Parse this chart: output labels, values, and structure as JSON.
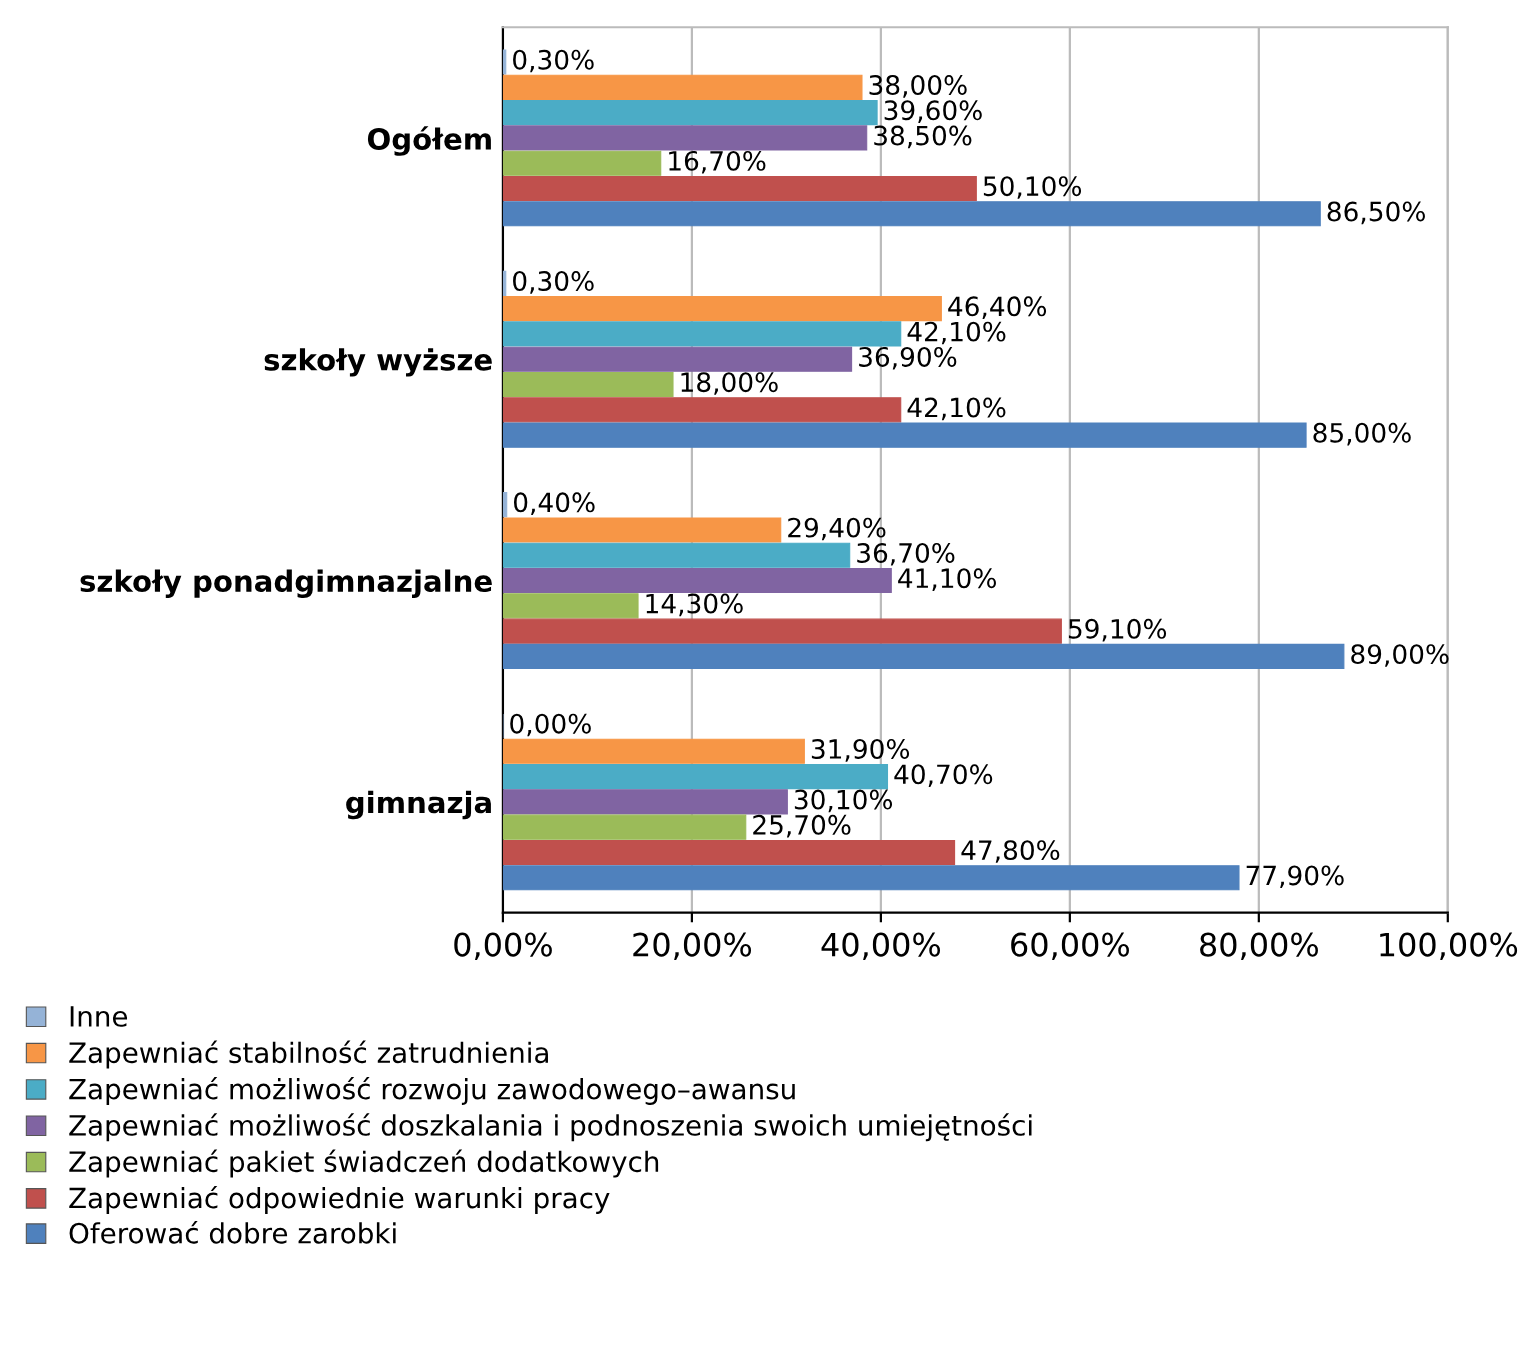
{
  "chart_data": {
    "type": "bar",
    "orientation": "horizontal",
    "categories": [
      "Ogółem",
      "szkoły wyższe",
      "szkoły ponadgimnazjalne",
      "gimnazja"
    ],
    "series": [
      {
        "name": "Inne",
        "color": "#95b3d7",
        "values": [
          0.3,
          0.3,
          0.4,
          0.0
        ],
        "value_labels": [
          "0,30%",
          "0,30%",
          "0,40%",
          "0,00%"
        ]
      },
      {
        "name": "Zapewniać stabilność zatrudnienia",
        "color": "#f79646",
        "values": [
          38.0,
          46.4,
          29.4,
          31.9
        ],
        "value_labels": [
          "38,00%",
          "46,40%",
          "29,40%",
          "31,90%"
        ]
      },
      {
        "name": "Zapewniać możliwość rozwoju zawodowego–awansu",
        "color": "#4bacc6",
        "values": [
          39.6,
          42.1,
          36.7,
          40.7
        ],
        "value_labels": [
          "39,60%",
          "42,10%",
          "36,70%",
          "40,70%"
        ]
      },
      {
        "name": "Zapewniać możliwość doszkalania i podnoszenia swoich umiejętności",
        "color": "#8064a2",
        "values": [
          38.5,
          36.9,
          41.1,
          30.1
        ],
        "value_labels": [
          "38,50%",
          "36,90%",
          "41,10%",
          "30,10%"
        ]
      },
      {
        "name": "Zapewniać pakiet świadczeń dodatkowych",
        "color": "#9bbb59",
        "values": [
          16.7,
          18.0,
          14.3,
          25.7
        ],
        "value_labels": [
          "16,70%",
          "18,00%",
          "14,30%",
          "25,70%"
        ]
      },
      {
        "name": "Zapewniać odpowiednie warunki pracy",
        "color": "#c0504d",
        "values": [
          50.1,
          42.1,
          59.1,
          47.8
        ],
        "value_labels": [
          "50,10%",
          "42,10%",
          "59,10%",
          "47,80%"
        ]
      },
      {
        "name": "Oferować dobre zarobki",
        "color": "#4f81bd",
        "values": [
          86.5,
          85.0,
          89.0,
          77.9
        ],
        "value_labels": [
          "86,50%",
          "85,00%",
          "89,00%",
          "77,90%"
        ]
      }
    ],
    "xlim": [
      0,
      100
    ],
    "xticks": [
      {
        "value": 0,
        "label": "0,00%"
      },
      {
        "value": 20,
        "label": "20,00%"
      },
      {
        "value": 40,
        "label": "40,00%"
      },
      {
        "value": 60,
        "label": "60,00%"
      },
      {
        "value": 80,
        "label": "80,00%"
      },
      {
        "value": 100,
        "label": "100,00%"
      }
    ],
    "grid": "x",
    "legend": "bottom"
  }
}
